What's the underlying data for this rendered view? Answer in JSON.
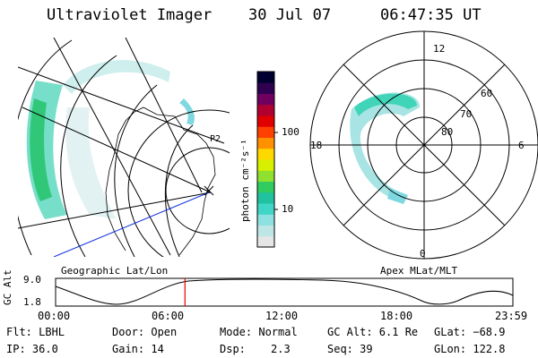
{
  "header": {
    "instrument": "Ultraviolet Imager",
    "date": "30 Jul 07",
    "time": "06:47:35 UT"
  },
  "colorbar": {
    "unit_label": "photon cm⁻²s⁻¹",
    "ticks": [
      "100",
      "10"
    ],
    "colors": [
      "#e6e6e6",
      "#bfe6e6",
      "#8fe0e0",
      "#3fd6c6",
      "#20c2a0",
      "#30cc60",
      "#90e030",
      "#d8f000",
      "#ffd800",
      "#ff9000",
      "#ff4000",
      "#e00000",
      "#b00030",
      "#700060",
      "#300050",
      "#000030"
    ]
  },
  "left_map": {
    "label": "Geographic Lat/Lon",
    "marker": "P2"
  },
  "right_map": {
    "label": "Apex MLat/MLT",
    "mlt_labels": {
      "top": "12",
      "left": "18",
      "right": "6",
      "bottom": "0"
    },
    "lat_labels": [
      "60",
      "70",
      "80"
    ]
  },
  "altitude_plot": {
    "axis_label": "GC Alt",
    "y_ticks": [
      "9.0",
      "1.8"
    ],
    "x_ticks": [
      "00:00",
      "06:00",
      "12:00",
      "18:00",
      "23:59"
    ],
    "current_time_marker_hours": 6.79,
    "marker_color": "#e00000"
  },
  "info": {
    "flt": "Flt: LBHL",
    "ip": "IP: 36.0",
    "door": "Door: Open",
    "gain": "Gain: 14",
    "mode": "Mode: Normal",
    "dsp_label": "Dsp:",
    "dsp_value": "2.3",
    "gcalt": "GC Alt: 6.1 Re",
    "seq": "Seq: 39",
    "glat": "GLat: −68.9",
    "glon": "GLon: 122.8"
  }
}
